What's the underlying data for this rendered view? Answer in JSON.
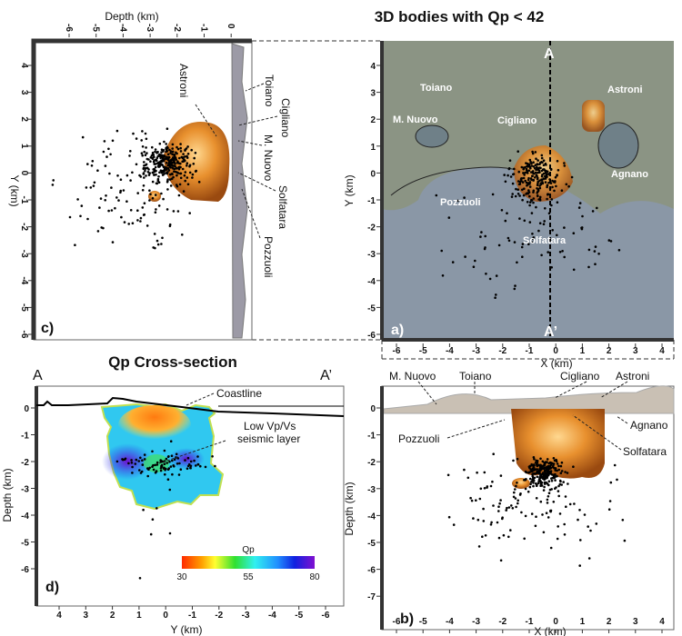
{
  "title": "3D bodies with Qp < 42",
  "panel_c": {
    "label": "c)",
    "x_axis_label": "Depth (km)",
    "y_axis_label": "Y (km)",
    "x_ticks": [
      "-6",
      "-5",
      "-4",
      "-3",
      "-2",
      "-1",
      "0"
    ],
    "y_ticks": [
      "4",
      "3",
      "2",
      "1",
      "0",
      "-1",
      "-2",
      "-3",
      "-4",
      "-5",
      "-6"
    ],
    "annotations": [
      "Astroni",
      "Toiano",
      "Cigliano",
      "M. Nuovo",
      "Solfatara",
      "Pozzuoli"
    ]
  },
  "panel_a": {
    "label": "a)",
    "x_axis_label": "X (km)",
    "y_axis_label": "Y (km)",
    "x_ticks": [
      "-6",
      "-5",
      "-4",
      "-3",
      "-2",
      "-1",
      "0",
      "1",
      "2",
      "3",
      "4"
    ],
    "y_ticks": [
      "4",
      "3",
      "2",
      "1",
      "0",
      "-1",
      "-2",
      "-3",
      "-4",
      "-5",
      "-6"
    ],
    "section_start": "A",
    "section_end": "A’",
    "annotations": [
      "Toiano",
      "Cigliano",
      "Astroni",
      "M. Nuovo",
      "Agnano",
      "Pozzuoli",
      "Solfatara"
    ]
  },
  "panel_b": {
    "label": "b)",
    "x_axis_label": "X (km)",
    "y_axis_label": "Depth (km)",
    "x_ticks": [
      "-6",
      "-5",
      "-4",
      "-3",
      "-2",
      "-1",
      "0",
      "1",
      "2",
      "3",
      "4"
    ],
    "y_ticks": [
      "0",
      "-1",
      "-2",
      "-3",
      "-4",
      "-5",
      "-6",
      "-7"
    ],
    "annotations": [
      "M. Nuovo",
      "Toiano",
      "Cigliano",
      "Astroni",
      "Agnano",
      "Pozzuoli",
      "Solfatara"
    ]
  },
  "panel_d": {
    "title": "Qp Cross-section",
    "label": "d)",
    "section_start": "A",
    "section_end": "A’",
    "x_axis_label": "Y (km)",
    "y_axis_label": "Depth (km)",
    "x_ticks": [
      "4",
      "3",
      "2",
      "1",
      "0",
      "-1",
      "-2",
      "-3",
      "-4",
      "-5",
      "-6"
    ],
    "y_ticks": [
      "0",
      "-1",
      "-2",
      "-3",
      "-4",
      "-5",
      "-6"
    ],
    "annotations": [
      "Coastline",
      "Low Vp/Vs",
      "seismic layer"
    ],
    "colorbar": {
      "title": "Qp",
      "min": "30",
      "mid": "55",
      "max": "80",
      "colors": [
        "#ff2a00",
        "#ffa000",
        "#ffff30",
        "#30e030",
        "#30f0f0",
        "#2090ff",
        "#1020e0",
        "#8010d0"
      ]
    }
  },
  "colors": {
    "body": "#e08a2c",
    "sea": "#7f8ea0",
    "land": "#8f9a86"
  }
}
